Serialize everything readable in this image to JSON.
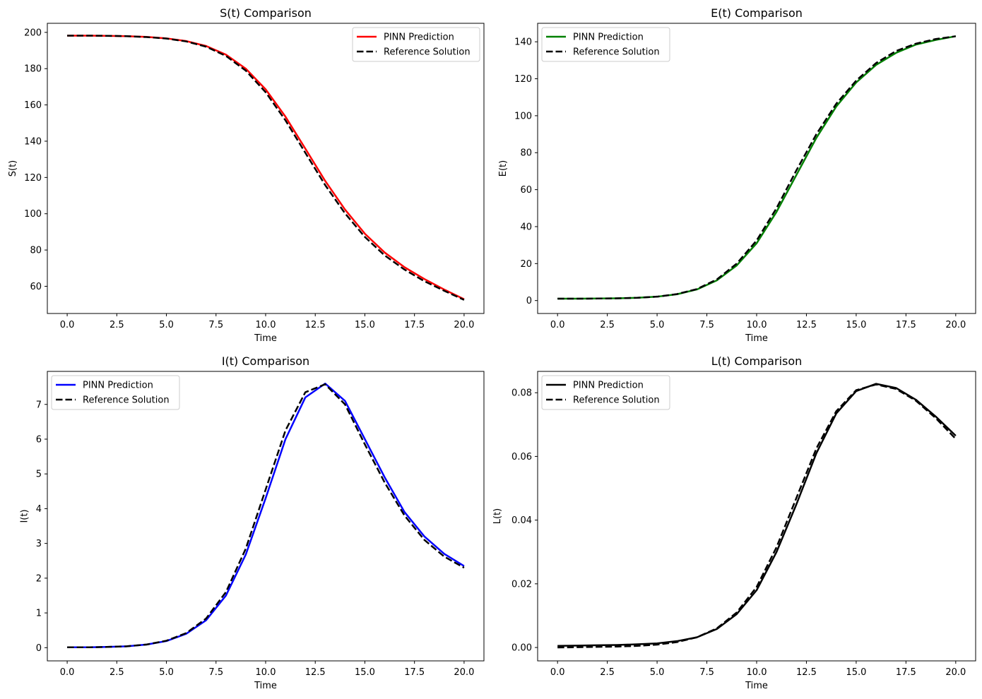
{
  "chart_data": [
    {
      "type": "line",
      "title": "S(t) Comparison",
      "xlabel": "Time",
      "ylabel": "S(t)",
      "xlim": [
        -1,
        21
      ],
      "ylim": [
        45,
        205
      ],
      "xticks": [
        0.0,
        2.5,
        5.0,
        7.5,
        10.0,
        12.5,
        15.0,
        17.5,
        20.0
      ],
      "xtick_labels": [
        "0.0",
        "2.5",
        "5.0",
        "7.5",
        "10.0",
        "12.5",
        "15.0",
        "17.5",
        "20.0"
      ],
      "yticks": [
        60,
        80,
        100,
        120,
        140,
        160,
        180,
        200
      ],
      "ytick_labels": [
        "60",
        "80",
        "100",
        "120",
        "140",
        "160",
        "180",
        "200"
      ],
      "legend_position": "top-right",
      "series": [
        {
          "name": "PINN Prediction",
          "color": "#ff0000",
          "style": "solid",
          "x": [
            0,
            1,
            2,
            3,
            4,
            5,
            6,
            7,
            8,
            9,
            10,
            11,
            12,
            13,
            14,
            15,
            16,
            17,
            18,
            19,
            20
          ],
          "values": [
            198.2,
            198.2,
            198.1,
            197.9,
            197.5,
            196.7,
            195.2,
            192.5,
            187.7,
            180.0,
            168.6,
            153.5,
            135.9,
            118.1,
            102.3,
            89.0,
            78.6,
            70.5,
            64.0,
            58.2,
            52.9
          ]
        },
        {
          "name": "Reference Solution",
          "color": "#000000",
          "style": "dashed",
          "x": [
            0,
            1,
            2,
            3,
            4,
            5,
            6,
            7,
            8,
            9,
            10,
            11,
            12,
            13,
            14,
            15,
            16,
            17,
            18,
            19,
            20
          ],
          "values": [
            198.2,
            198.2,
            198.1,
            197.9,
            197.4,
            196.6,
            195.0,
            192.1,
            187.0,
            178.9,
            167.0,
            151.5,
            133.6,
            115.8,
            100.2,
            87.2,
            77.0,
            69.2,
            62.8,
            57.5,
            52.5
          ]
        }
      ]
    },
    {
      "type": "line",
      "title": "E(t) Comparison",
      "xlabel": "Time",
      "ylabel": "E(t)",
      "xlim": [
        -1,
        21
      ],
      "ylim": [
        -7,
        150
      ],
      "xticks": [
        0.0,
        2.5,
        5.0,
        7.5,
        10.0,
        12.5,
        15.0,
        17.5,
        20.0
      ],
      "xtick_labels": [
        "0.0",
        "2.5",
        "5.0",
        "7.5",
        "10.0",
        "12.5",
        "15.0",
        "17.5",
        "20.0"
      ],
      "yticks": [
        0,
        20,
        40,
        60,
        80,
        100,
        120,
        140
      ],
      "ytick_labels": [
        "0",
        "20",
        "40",
        "60",
        "80",
        "100",
        "120",
        "140"
      ],
      "legend_position": "top-left",
      "series": [
        {
          "name": "PINN Prediction",
          "color": "#008000",
          "style": "solid",
          "x": [
            0,
            1,
            2,
            3,
            4,
            5,
            6,
            7,
            8,
            9,
            10,
            11,
            12,
            13,
            14,
            15,
            16,
            17,
            18,
            19,
            20
          ],
          "values": [
            1.0,
            1.0,
            1.1,
            1.2,
            1.5,
            2.1,
            3.4,
            6.0,
            10.9,
            19.0,
            31.0,
            48.0,
            68.0,
            88.0,
            105.0,
            118.0,
            127.5,
            134.0,
            138.5,
            141.0,
            143.0
          ]
        },
        {
          "name": "Reference Solution",
          "color": "#000000",
          "style": "dashed",
          "x": [
            0,
            1,
            2,
            3,
            4,
            5,
            6,
            7,
            8,
            9,
            10,
            11,
            12,
            13,
            14,
            15,
            16,
            17,
            18,
            19,
            20
          ],
          "values": [
            1.0,
            1.0,
            1.1,
            1.2,
            1.5,
            2.1,
            3.5,
            6.2,
            11.4,
            20.0,
            32.5,
            50.0,
            70.5,
            90.0,
            106.5,
            119.0,
            128.5,
            135.0,
            139.0,
            141.5,
            143.0
          ]
        }
      ]
    },
    {
      "type": "line",
      "title": "I(t) Comparison",
      "xlabel": "Time",
      "ylabel": "I(t)",
      "xlim": [
        -1,
        21
      ],
      "ylim": [
        -0.38,
        7.95
      ],
      "xticks": [
        0.0,
        2.5,
        5.0,
        7.5,
        10.0,
        12.5,
        15.0,
        17.5,
        20.0
      ],
      "xtick_labels": [
        "0.0",
        "2.5",
        "5.0",
        "7.5",
        "10.0",
        "12.5",
        "15.0",
        "17.5",
        "20.0"
      ],
      "yticks": [
        0,
        1,
        2,
        3,
        4,
        5,
        6,
        7
      ],
      "ytick_labels": [
        "0",
        "1",
        "2",
        "3",
        "4",
        "5",
        "6",
        "7"
      ],
      "legend_position": "top-left",
      "series": [
        {
          "name": "PINN Prediction",
          "color": "#0000ff",
          "style": "solid",
          "x": [
            0,
            1,
            2,
            3,
            4,
            5,
            6,
            7,
            8,
            9,
            10,
            11,
            12,
            13,
            14,
            15,
            16,
            17,
            18,
            19,
            20
          ],
          "values": [
            0.01,
            0.01,
            0.02,
            0.04,
            0.09,
            0.19,
            0.4,
            0.79,
            1.5,
            2.68,
            4.3,
            6.0,
            7.2,
            7.6,
            7.1,
            6.0,
            4.9,
            3.9,
            3.2,
            2.7,
            2.35
          ]
        },
        {
          "name": "Reference Solution",
          "color": "#000000",
          "style": "dashed",
          "x": [
            0,
            1,
            2,
            3,
            4,
            5,
            6,
            7,
            8,
            9,
            10,
            11,
            12,
            13,
            14,
            15,
            16,
            17,
            18,
            19,
            20
          ],
          "values": [
            0.01,
            0.01,
            0.02,
            0.04,
            0.09,
            0.2,
            0.42,
            0.84,
            1.6,
            2.85,
            4.55,
            6.25,
            7.35,
            7.58,
            7.0,
            5.85,
            4.75,
            3.8,
            3.1,
            2.62,
            2.3
          ]
        }
      ]
    },
    {
      "type": "line",
      "title": "L(t) Comparison",
      "xlabel": "Time",
      "ylabel": "L(t)",
      "xlim": [
        -1,
        21
      ],
      "ylim": [
        -0.0042,
        0.0867
      ],
      "xticks": [
        0.0,
        2.5,
        5.0,
        7.5,
        10.0,
        12.5,
        15.0,
        17.5,
        20.0
      ],
      "xtick_labels": [
        "0.0",
        "2.5",
        "5.0",
        "7.5",
        "10.0",
        "12.5",
        "15.0",
        "17.5",
        "20.0"
      ],
      "yticks": [
        0.0,
        0.02,
        0.04,
        0.06,
        0.08
      ],
      "ytick_labels": [
        "0.00",
        "0.02",
        "0.04",
        "0.06",
        "0.08"
      ],
      "legend_position": "top-left",
      "series": [
        {
          "name": "PINN Prediction",
          "color": "#000000",
          "style": "solid",
          "x": [
            0,
            1,
            2,
            3,
            4,
            5,
            6,
            7,
            8,
            9,
            10,
            11,
            12,
            13,
            14,
            15,
            16,
            17,
            18,
            19,
            20
          ],
          "values": [
            0.0005,
            0.0006,
            0.0007,
            0.0008,
            0.001,
            0.0013,
            0.002,
            0.0032,
            0.0058,
            0.0105,
            0.018,
            0.03,
            0.045,
            0.061,
            0.0735,
            0.0805,
            0.0828,
            0.0815,
            0.0778,
            0.0725,
            0.0665
          ]
        },
        {
          "name": "Reference Solution",
          "color": "#000000",
          "style": "dashed",
          "x": [
            0,
            1,
            2,
            3,
            4,
            5,
            6,
            7,
            8,
            9,
            10,
            11,
            12,
            13,
            14,
            15,
            16,
            17,
            18,
            19,
            20
          ],
          "values": [
            0.0,
            0.0001,
            0.0002,
            0.0003,
            0.0005,
            0.0009,
            0.0017,
            0.0032,
            0.006,
            0.011,
            0.019,
            0.0315,
            0.047,
            0.0625,
            0.0742,
            0.0808,
            0.0826,
            0.0812,
            0.0775,
            0.072,
            0.0655
          ]
        }
      ]
    }
  ]
}
